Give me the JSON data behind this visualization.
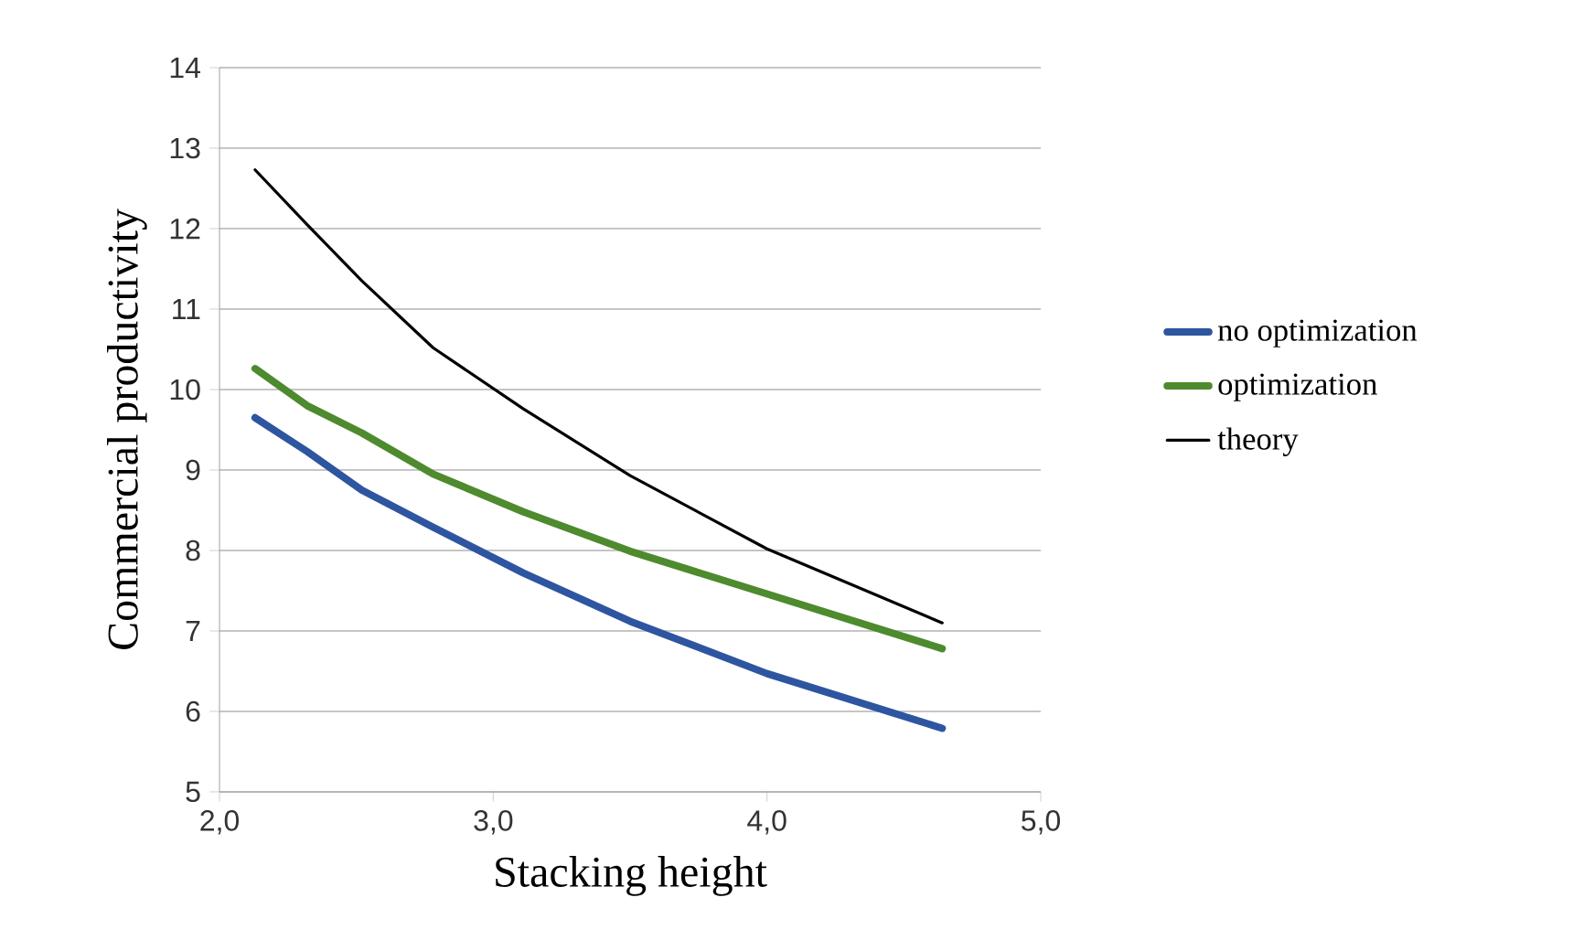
{
  "chart_data": {
    "type": "line",
    "xlabel": "Stacking height",
    "ylabel": "Commercial productivity",
    "xlim": [
      2,
      5
    ],
    "ylim": [
      5,
      14
    ],
    "xticks": [
      {
        "value": 2,
        "label": "2,0"
      },
      {
        "value": 3,
        "label": "3,0"
      },
      {
        "value": 4,
        "label": "4,0"
      },
      {
        "value": 5,
        "label": "5,0"
      }
    ],
    "yticks": [
      5,
      6,
      7,
      8,
      9,
      10,
      11,
      12,
      13,
      14
    ],
    "grid": "y",
    "legend": "right",
    "marker": "none",
    "line_style": "solid",
    "series": [
      {
        "name": "no optimization",
        "color": "#2e55a0",
        "x": [
          2.13,
          2.32,
          2.52,
          2.78,
          3.11,
          3.5,
          4.0,
          4.64
        ],
        "values": [
          9.65,
          9.23,
          8.75,
          8.29,
          7.72,
          7.12,
          6.47,
          5.79
        ]
      },
      {
        "name": "optimization",
        "color": "#4e8a2e",
        "x": [
          2.13,
          2.32,
          2.52,
          2.78,
          3.11,
          3.5,
          4.0,
          4.64
        ],
        "values": [
          10.26,
          9.8,
          9.46,
          8.95,
          8.48,
          7.99,
          7.46,
          6.78
        ]
      },
      {
        "name": "theory",
        "color": "#000000",
        "x": [
          2.13,
          2.32,
          2.52,
          2.78,
          3.11,
          3.5,
          4.0,
          4.64
        ],
        "values": [
          12.73,
          12.05,
          11.35,
          10.52,
          9.76,
          8.93,
          8.02,
          7.1
        ]
      }
    ]
  }
}
